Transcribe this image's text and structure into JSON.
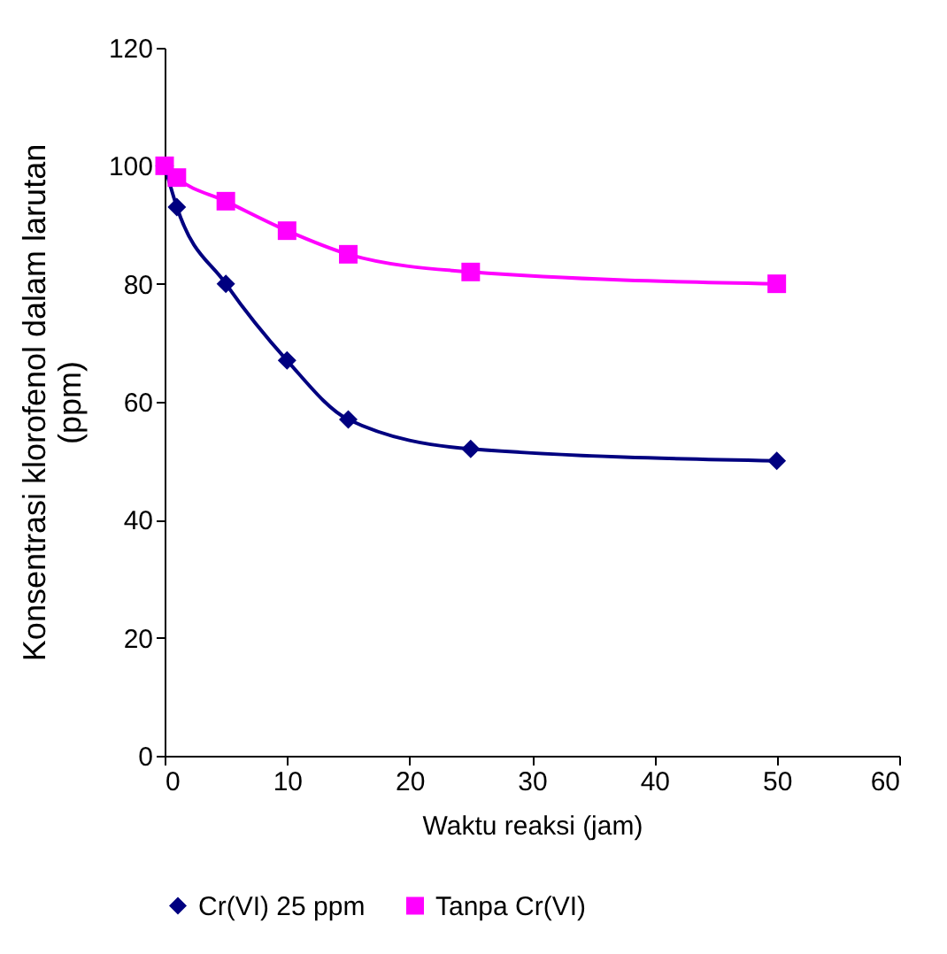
{
  "chart_data": {
    "type": "line",
    "xlabel": "Waktu reaksi (jam)",
    "ylabel": "Konsentrasi klorofenol dalam larutan (ppm)",
    "x": [
      0,
      1,
      5,
      10,
      15,
      25,
      50
    ],
    "series": [
      {
        "name": "Cr(VI) 25 ppm",
        "color": "#000080",
        "marker": "diamond",
        "values": [
          100,
          93,
          80,
          67,
          57,
          52,
          50
        ]
      },
      {
        "name": "Tanpa Cr(VI)",
        "color": "#ff00ff",
        "marker": "square",
        "values": [
          100,
          98,
          94,
          89,
          85,
          82,
          80
        ]
      }
    ],
    "xlim": [
      0,
      60
    ],
    "xticks": [
      0,
      10,
      20,
      30,
      40,
      50,
      60
    ],
    "ylim": [
      0,
      120
    ],
    "yticks": [
      0,
      20,
      40,
      60,
      80,
      100,
      120
    ],
    "grid": false,
    "legend": "bottom",
    "line_style": "solid"
  }
}
